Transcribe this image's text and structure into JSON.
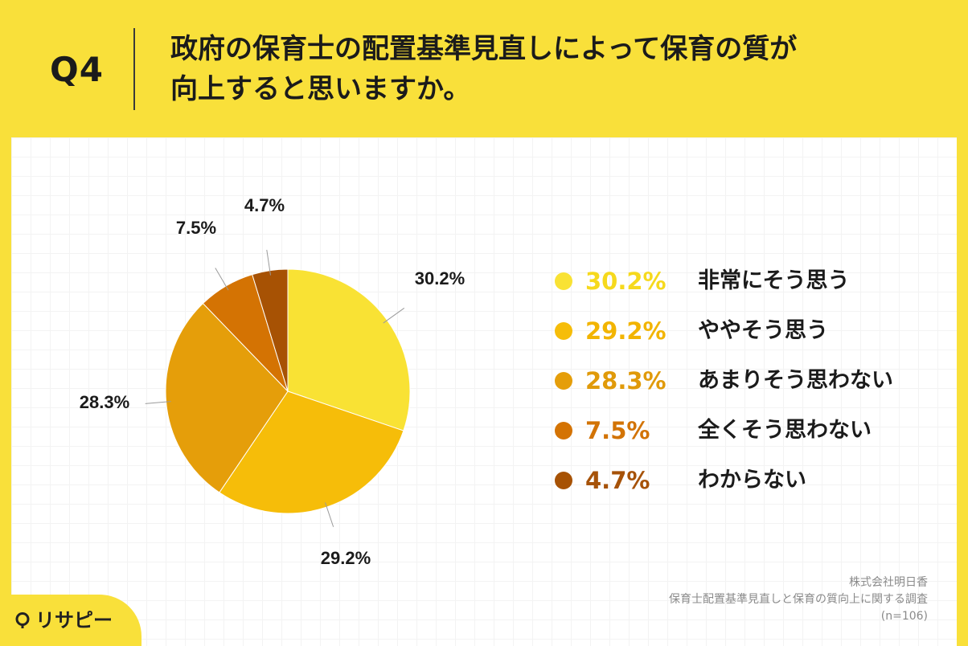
{
  "header": {
    "question_number": "Q4",
    "title_line1": "政府の保育士の配置基準見直しによって保育の質が",
    "title_line2": "向上すると思いますか。"
  },
  "chart_data": {
    "type": "pie",
    "start_angle_deg": 0,
    "direction": "clockwise",
    "slices": [
      {
        "label": "非常にそう思う",
        "value": 30.2,
        "display": "30.2%",
        "color": "#F9E234"
      },
      {
        "label": "ややそう思う",
        "value": 29.2,
        "display": "29.2%",
        "color": "#F6BD09"
      },
      {
        "label": "あまりそう思わない",
        "value": 28.3,
        "display": "28.3%",
        "color": "#E59E0A"
      },
      {
        "label": "全くそう思わない",
        "value": 7.5,
        "display": "7.5%",
        "color": "#D47303"
      },
      {
        "label": "わからない",
        "value": 4.7,
        "display": "4.7%",
        "color": "#A75204"
      }
    ]
  },
  "legend": {
    "items": [
      {
        "value": "30.2%",
        "label": "非常にそう思う",
        "color": "#F9E234",
        "text_color": "#F6D91D"
      },
      {
        "value": "29.2%",
        "label": "ややそう思う",
        "color": "#F6BD09",
        "text_color": "#F2B400"
      },
      {
        "value": "28.3%",
        "label": "あまりそう思わない",
        "color": "#E59E0A",
        "text_color": "#E09A0A"
      },
      {
        "value": "7.5%",
        "label": "全くそう思わない",
        "color": "#D47303",
        "text_color": "#D27305"
      },
      {
        "value": "4.7%",
        "label": "わからない",
        "color": "#A75204",
        "text_color": "#A65208"
      }
    ]
  },
  "source": {
    "company": "株式会社明日香",
    "survey": "保育士配置基準見直しと保育の質向上に関する調査",
    "n": "(n=106)"
  },
  "brand": {
    "name": "リサピー",
    "pin_icon": "location-pin-icon"
  }
}
